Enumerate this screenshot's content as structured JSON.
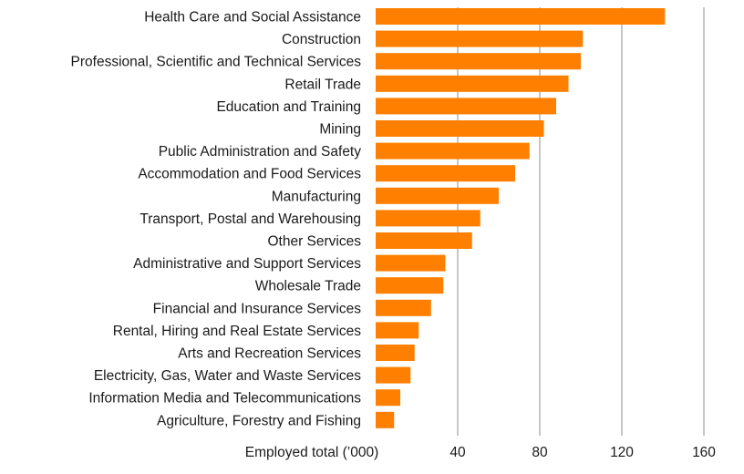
{
  "chart_data": {
    "type": "bar",
    "orientation": "horizontal",
    "categories": [
      "Health Care and Social Assistance",
      "Construction",
      "Professional, Scientific and Technical Services",
      "Retail Trade",
      "Education and Training",
      "Mining",
      "Public Administration and Safety",
      "Accommodation and Food Services",
      "Manufacturing",
      "Transport, Postal and Warehousing",
      "Other Services",
      "Administrative and Support Services",
      "Wholesale Trade",
      "Financial and Insurance Services",
      "Rental, Hiring and Real Estate Services",
      "Arts and Recreation Services",
      "Electricity, Gas, Water and Waste Services",
      "Information Media and Telecommunications",
      "Agriculture, Forestry and Fishing"
    ],
    "values": [
      141,
      101,
      100,
      94,
      88,
      82,
      75,
      68,
      60,
      51,
      47,
      34,
      33,
      27,
      21,
      19,
      17,
      12,
      9
    ],
    "xlabel": "Employed total (’000)",
    "xlim": [
      0,
      160
    ],
    "xticks": [
      "40",
      "80",
      "120",
      "160"
    ],
    "xtick_values": [
      40,
      80,
      120,
      160
    ],
    "grid": "vertical",
    "bar_color": "#ff7f00",
    "grid_color": "#8c8c8c"
  }
}
